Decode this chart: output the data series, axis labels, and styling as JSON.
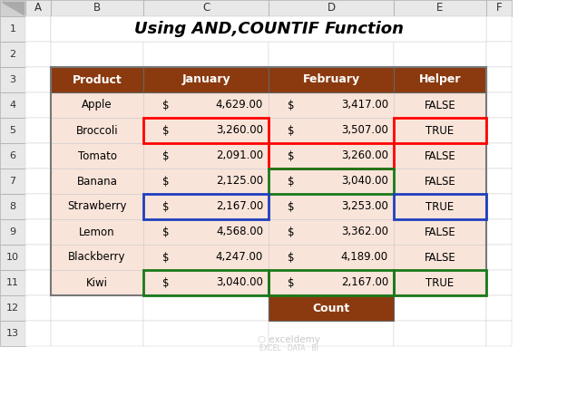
{
  "title": "Using AND,COUNTIF Function",
  "col_headers": [
    "Product",
    "January",
    "February",
    "Helper"
  ],
  "rows": [
    [
      "Apple",
      "4,629.00",
      "3,417.00",
      "FALSE"
    ],
    [
      "Broccoli",
      "3,260.00",
      "3,507.00",
      "TRUE"
    ],
    [
      "Tomato",
      "2,091.00",
      "3,260.00",
      "FALSE"
    ],
    [
      "Banana",
      "2,125.00",
      "3,040.00",
      "FALSE"
    ],
    [
      "Strawberry",
      "2,167.00",
      "3,253.00",
      "TRUE"
    ],
    [
      "Lemon",
      "4,568.00",
      "3,362.00",
      "FALSE"
    ],
    [
      "Blackberry",
      "4,247.00",
      "4,189.00",
      "FALSE"
    ],
    [
      "Kiwi",
      "3,040.00",
      "2,167.00",
      "TRUE"
    ]
  ],
  "count_label": "Count",
  "header_bg": "#8B3A0F",
  "header_fg": "#FFFFFF",
  "row_bg": "#F9E4D9",
  "count_bg": "#8B3A0F",
  "count_fg": "#FFFFFF",
  "highlight_red": "#FF0000",
  "highlight_blue": "#1F3EBF",
  "highlight_green": "#1A7A1A",
  "excel_header_bg": "#E8E8E8",
  "excel_corner_bg": "#D0D0D0",
  "white": "#FFFFFF",
  "grid_color": "#C0C0C0",
  "dark_border": "#555555",
  "col_letters": [
    "A",
    "B",
    "C",
    "D",
    "E",
    "F"
  ],
  "row_numbers": [
    "1",
    "2",
    "3",
    "4",
    "5",
    "6",
    "7",
    "8",
    "9",
    "10",
    "11",
    "12",
    "13"
  ],
  "title_fontsize": 13,
  "header_fontsize": 9,
  "data_fontsize": 8.5,
  "row_num_fontsize": 8,
  "col_let_fontsize": 8.5
}
